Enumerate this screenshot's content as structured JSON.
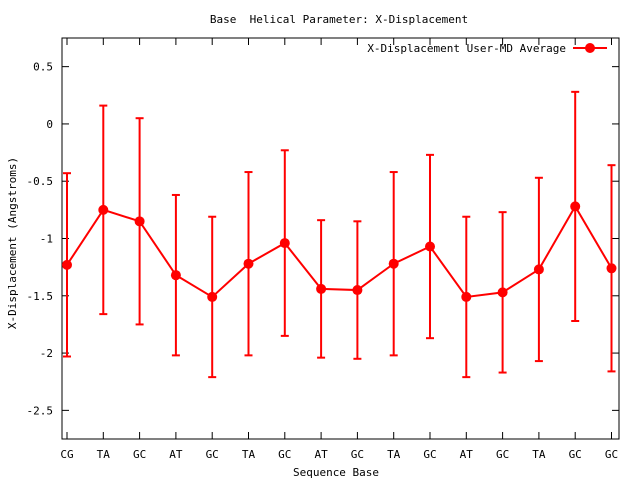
{
  "chart_data": {
    "type": "line",
    "title": "Base  Helical Parameter: X-Displacement",
    "xlabel": "Sequence Base",
    "ylabel": "X-Displacement (Angstroms)",
    "categories": [
      "CG",
      "TA",
      "GC",
      "AT",
      "GC",
      "TA",
      "GC",
      "AT",
      "GC",
      "TA",
      "GC",
      "AT",
      "GC",
      "TA",
      "GC",
      "GC"
    ],
    "ylim": [
      -2.75,
      0.75
    ],
    "yticks": [
      0.5,
      0,
      -0.5,
      -1,
      -1.5,
      -2,
      -2.5
    ],
    "ytick_labels": [
      "0.5",
      "0",
      "-0.5",
      "-1",
      "-1.5",
      "-2",
      "-2.5"
    ],
    "grid": false,
    "legend_position": "top-right",
    "series": [
      {
        "name": "X-Displacement User-MD Average",
        "color": "#ff0000",
        "values": [
          -1.23,
          -0.75,
          -0.85,
          -1.32,
          -1.51,
          -1.22,
          -1.04,
          -1.44,
          -1.45,
          -1.22,
          -1.07,
          -1.51,
          -1.47,
          -1.27,
          -0.72,
          -1.26
        ],
        "error": [
          0.8,
          0.91,
          0.9,
          0.7,
          0.7,
          0.8,
          0.81,
          0.6,
          0.6,
          0.8,
          0.8,
          0.7,
          0.7,
          0.8,
          1.0,
          0.9
        ]
      }
    ]
  }
}
